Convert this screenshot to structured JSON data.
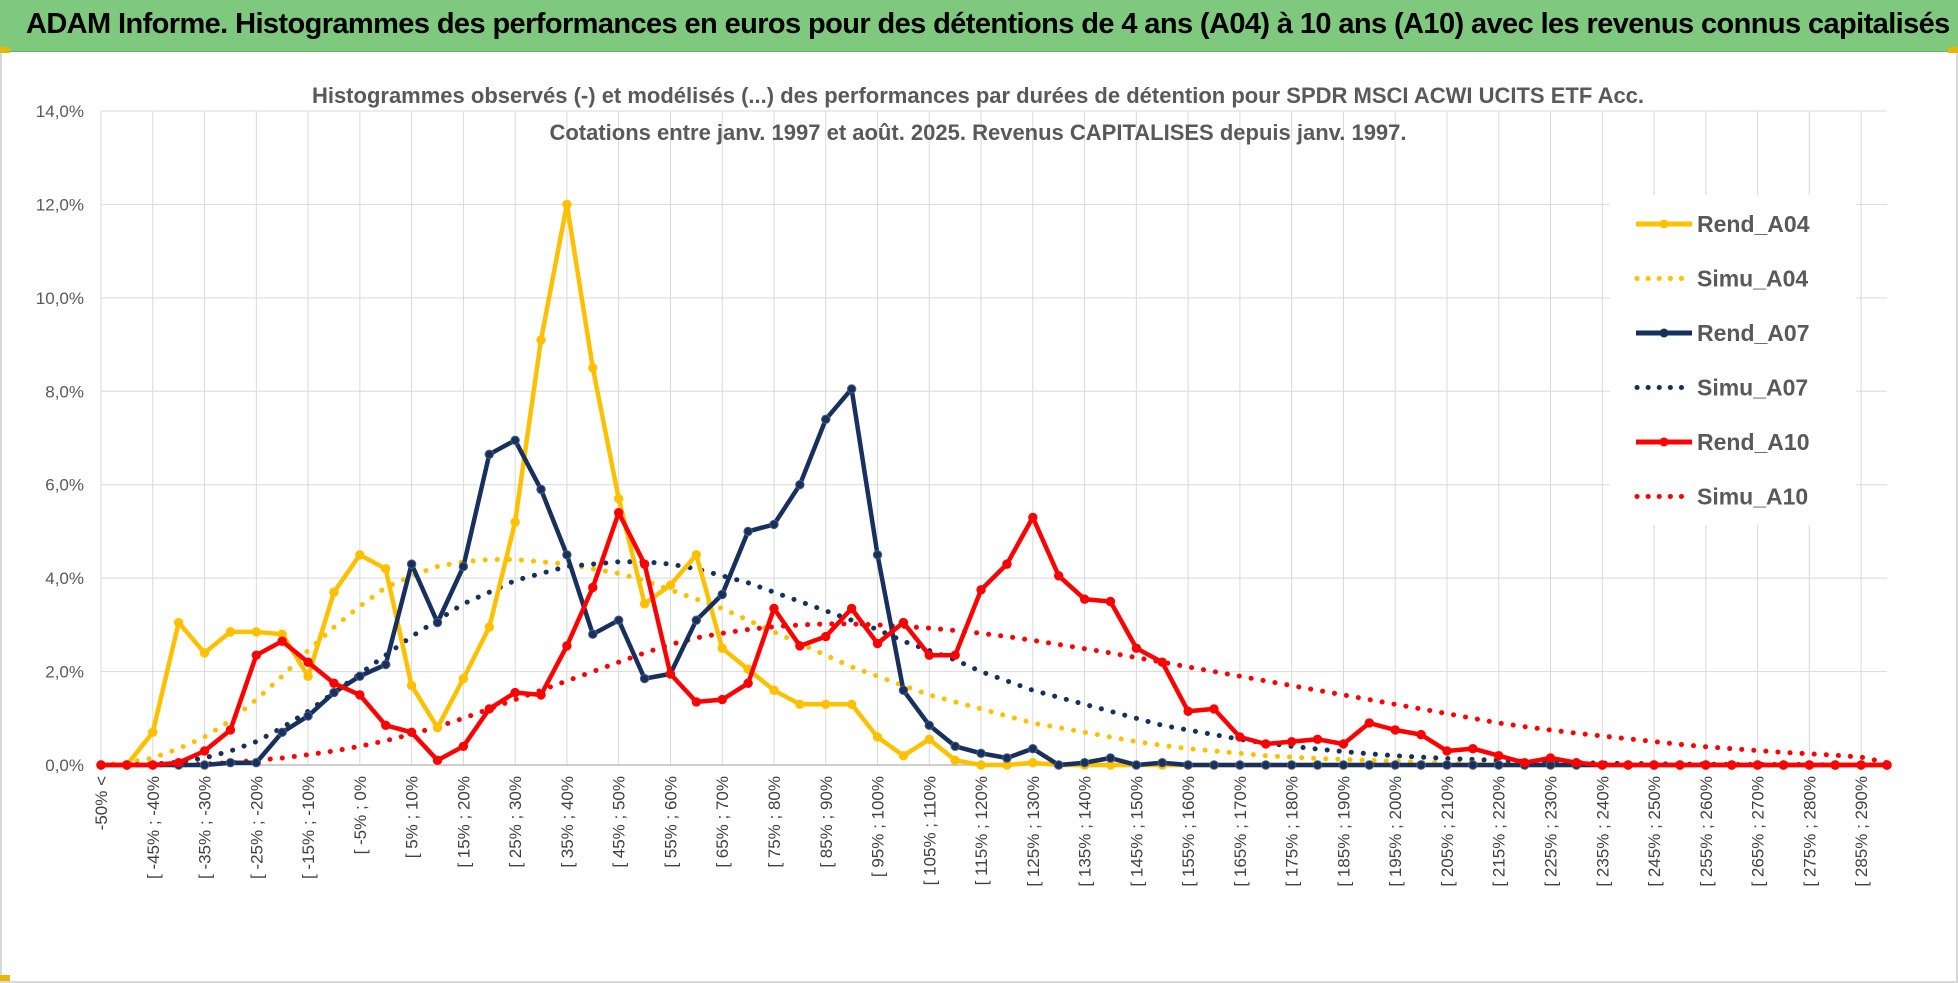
{
  "header": {
    "title": "ADAM Informe. Histogrammes des performances en euros pour des détentions de 4 ans (A04) à 10 ans (A10) avec les revenus connus capitalisés"
  },
  "colors": {
    "banner": "#7fc97f",
    "A04": "#ffc000",
    "A07": "#17305e",
    "A10": "#ff0000",
    "grid": "#d9d9d9"
  },
  "chart_data": {
    "type": "line",
    "title": "Histogrammes observés (-) et modélisés (...) des performances par durées de détention pour SPDR MSCI ACWI UCITS ETF Acc.",
    "subtitle": "Cotations entre janv. 1997 et août. 2025. Revenus CAPITALISES depuis janv. 1997.",
    "ylim": [
      0,
      14
    ],
    "yticks": [
      "0,0%",
      "2,0%",
      "4,0%",
      "6,0%",
      "8,0%",
      "10,0%",
      "12,0%",
      "14,0%"
    ],
    "grid": true,
    "legend_position": "right",
    "categories": [
      "-50% <",
      "",
      "[ -45% ; -40%",
      "",
      "[ -35% ; -30%",
      "",
      "[ -25% ; -20%",
      "",
      "[ -15% ; -10%",
      "",
      "[ -5% ; 0%",
      "",
      "[ 5% ; 10%",
      "",
      "[ 15% ; 20%",
      "",
      "[ 25% ; 30%",
      "",
      "[ 35% ; 40%",
      "",
      "[ 45% ; 50%",
      "",
      "[ 55% ; 60%",
      "",
      "[ 65% ; 70%",
      "",
      "[ 75% ; 80%",
      "",
      "[ 85% ; 90%",
      "",
      "[ 95% ; 100%",
      "",
      "[ 105% ; 110%",
      "",
      "[ 115% ; 120%",
      "",
      "[ 125% ; 130%",
      "",
      "[ 135% ; 140%",
      "",
      "[ 145% ; 150%",
      "",
      "[ 155% ; 160%",
      "",
      "[ 165% ; 170%",
      "",
      "[ 175% ; 180%",
      "",
      "[ 185% ; 190%",
      "",
      "[ 195% ; 200%",
      "",
      "[ 205% ; 210%",
      "",
      "[ 215% ; 220%",
      "",
      "[ 225% ; 230%",
      "",
      "[ 235% ; 240%",
      "",
      "[ 245% ; 250%",
      "",
      "[ 255% ; 260%",
      "",
      "[ 265% ; 270%",
      "",
      "[ 275% ; 280%",
      "",
      "[ 285% ; 290%",
      ""
    ],
    "series": [
      {
        "name": "Rend_A04",
        "style": "solid",
        "color": "#ffc000",
        "values": [
          0.0,
          0.0,
          0.7,
          3.05,
          2.4,
          2.85,
          2.85,
          2.8,
          1.9,
          3.7,
          4.5,
          4.2,
          1.7,
          0.8,
          1.85,
          2.95,
          5.2,
          9.1,
          12.0,
          8.5,
          5.7,
          3.45,
          3.85,
          4.5,
          2.5,
          2.05,
          1.6,
          1.3,
          1.3,
          1.3,
          0.6,
          0.2,
          0.55,
          0.1,
          0.0,
          0.0,
          0.05,
          0.0,
          0.0,
          0.0,
          0.0,
          0.0,
          0.0,
          0.0,
          0.0,
          0.0,
          0.0,
          0.0,
          0.0,
          0.0,
          0.0,
          0.0,
          0.0,
          0.0,
          0.0,
          0.0,
          0.0,
          0.0,
          0.0,
          0.0,
          0.0,
          0.0,
          0.0,
          0.0,
          0.0,
          0.0,
          0.0,
          0.0,
          0.0,
          0.0
        ]
      },
      {
        "name": "Simu_A04",
        "style": "dotted",
        "color": "#ffc000",
        "values": [
          0.0,
          0.05,
          0.15,
          0.35,
          0.6,
          0.95,
          1.4,
          1.9,
          2.45,
          2.95,
          3.4,
          3.8,
          4.05,
          4.25,
          4.35,
          4.4,
          4.4,
          4.35,
          4.3,
          4.2,
          4.1,
          3.95,
          3.75,
          3.55,
          3.35,
          3.1,
          2.85,
          2.6,
          2.35,
          2.1,
          1.9,
          1.7,
          1.5,
          1.35,
          1.2,
          1.05,
          0.9,
          0.8,
          0.7,
          0.6,
          0.5,
          0.42,
          0.35,
          0.3,
          0.25,
          0.2,
          0.17,
          0.14,
          0.12,
          0.1,
          0.08,
          0.06,
          0.05,
          0.04,
          0.03,
          0.03,
          0.02,
          0.02,
          0.01,
          0.01,
          0.01,
          0.01,
          0.0,
          0.0,
          0.0,
          0.0,
          0.0,
          0.0,
          0.0,
          0.0
        ]
      },
      {
        "name": "Rend_A07",
        "style": "solid",
        "color": "#17305e",
        "values": [
          0.0,
          0.0,
          0.0,
          0.0,
          0.0,
          0.05,
          0.05,
          0.7,
          1.05,
          1.55,
          1.9,
          2.15,
          4.3,
          3.05,
          4.25,
          6.65,
          6.95,
          5.9,
          4.5,
          2.8,
          3.1,
          1.85,
          1.95,
          3.1,
          3.65,
          5.0,
          5.15,
          6.0,
          7.4,
          8.05,
          4.5,
          1.6,
          0.85,
          0.4,
          0.25,
          0.15,
          0.35,
          0.0,
          0.05,
          0.15,
          0.0,
          0.05,
          0.0,
          0.0,
          0.0,
          0.0,
          0.0,
          0.0,
          0.0,
          0.0,
          0.0,
          0.0,
          0.0,
          0.0,
          0.0,
          0.0,
          0.0,
          0.0,
          0.0,
          0.0,
          0.0,
          0.0,
          0.0,
          0.0,
          0.0,
          0.0,
          0.0,
          0.0,
          0.0,
          0.0
        ]
      },
      {
        "name": "Simu_A07",
        "style": "dotted",
        "color": "#17305e",
        "values": [
          0.0,
          0.0,
          0.02,
          0.06,
          0.15,
          0.3,
          0.5,
          0.8,
          1.15,
          1.55,
          1.95,
          2.35,
          2.75,
          3.1,
          3.45,
          3.7,
          3.95,
          4.1,
          4.25,
          4.3,
          4.35,
          4.35,
          4.3,
          4.2,
          4.05,
          3.9,
          3.7,
          3.5,
          3.3,
          3.1,
          2.9,
          2.65,
          2.45,
          2.25,
          2.0,
          1.8,
          1.6,
          1.45,
          1.3,
          1.15,
          1.0,
          0.85,
          0.75,
          0.65,
          0.55,
          0.47,
          0.4,
          0.34,
          0.29,
          0.24,
          0.2,
          0.17,
          0.14,
          0.12,
          0.1,
          0.08,
          0.06,
          0.05,
          0.04,
          0.03,
          0.03,
          0.02,
          0.02,
          0.01,
          0.01,
          0.01,
          0.01,
          0.0,
          0.0,
          0.0
        ]
      },
      {
        "name": "Rend_A10",
        "style": "solid",
        "color": "#ff0000",
        "values": [
          0.0,
          0.0,
          0.0,
          0.05,
          0.3,
          0.75,
          2.35,
          2.65,
          2.2,
          1.75,
          1.5,
          0.85,
          0.7,
          0.1,
          0.4,
          1.2,
          1.55,
          1.5,
          2.55,
          3.8,
          5.4,
          4.3,
          1.95,
          1.35,
          1.4,
          1.75,
          3.35,
          2.55,
          2.75,
          3.35,
          2.6,
          3.05,
          2.35,
          2.35,
          3.75,
          4.3,
          5.3,
          4.05,
          3.55,
          3.5,
          2.5,
          2.2,
          1.15,
          1.2,
          0.6,
          0.45,
          0.5,
          0.55,
          0.45,
          0.9,
          0.75,
          0.65,
          0.3,
          0.35,
          0.2,
          0.05,
          0.15,
          0.05,
          0.0,
          0.0,
          0.0,
          0.0,
          0.0,
          0.0,
          0.0,
          0.0,
          0.0,
          0.0,
          0.0,
          0.0
        ]
      },
      {
        "name": "Simu_A10",
        "style": "dotted",
        "color": "#ff0000",
        "values": [
          0.0,
          0.0,
          0.0,
          0.0,
          0.02,
          0.05,
          0.1,
          0.15,
          0.22,
          0.3,
          0.4,
          0.52,
          0.66,
          0.82,
          1.0,
          1.2,
          1.4,
          1.6,
          1.8,
          2.0,
          2.2,
          2.4,
          2.58,
          2.72,
          2.82,
          2.9,
          2.96,
          3.0,
          3.02,
          3.02,
          3.0,
          2.97,
          2.93,
          2.88,
          2.82,
          2.75,
          2.67,
          2.58,
          2.49,
          2.4,
          2.3,
          2.2,
          2.1,
          2.0,
          1.9,
          1.8,
          1.7,
          1.6,
          1.5,
          1.4,
          1.3,
          1.2,
          1.1,
          1.0,
          0.9,
          0.82,
          0.75,
          0.68,
          0.62,
          0.56,
          0.5,
          0.44,
          0.39,
          0.35,
          0.31,
          0.27,
          0.24,
          0.21,
          0.17,
          0.05
        ]
      }
    ]
  }
}
